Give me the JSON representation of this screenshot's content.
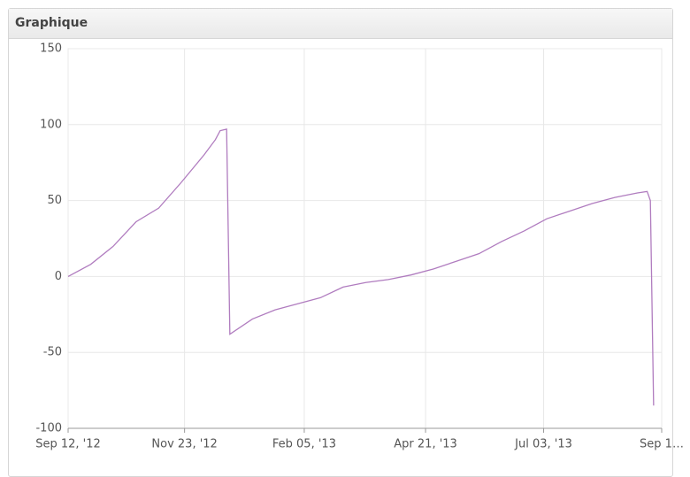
{
  "chart_data": {
    "type": "line",
    "title": "Graphique",
    "x": [
      "2012-09-12",
      "2012-09-26",
      "2012-10-10",
      "2012-10-24",
      "2012-11-07",
      "2012-11-21",
      "2012-12-05",
      "2012-12-12",
      "2012-12-15",
      "2012-12-19",
      "2012-12-21",
      "2013-01-04",
      "2013-01-18",
      "2013-02-01",
      "2013-02-15",
      "2013-03-01",
      "2013-03-15",
      "2013-03-29",
      "2013-04-12",
      "2013-04-26",
      "2013-05-10",
      "2013-05-24",
      "2013-06-07",
      "2013-06-21",
      "2013-07-05",
      "2013-07-19",
      "2013-08-02",
      "2013-08-16",
      "2013-08-30",
      "2013-09-05",
      "2013-09-07",
      "2013-09-09"
    ],
    "series": [
      {
        "color": "#b07cbf",
        "values": [
          0,
          8,
          20,
          36,
          45,
          62,
          80,
          90,
          96,
          97,
          -38,
          -28,
          -22,
          -18,
          -14,
          -7,
          -4,
          -2,
          1,
          5,
          10,
          15,
          23,
          30,
          38,
          43,
          48,
          52,
          55,
          56,
          50,
          -85
        ]
      }
    ],
    "xlim": [
      "2012-09-12",
      "2013-09-14"
    ],
    "xticks": [
      {
        "value": "2012-09-12",
        "label": "Sep 12, '12"
      },
      {
        "value": "2012-11-23",
        "label": "Nov 23, '12"
      },
      {
        "value": "2013-02-05",
        "label": "Feb 05, '13"
      },
      {
        "value": "2013-04-21",
        "label": "Apr 21, '13"
      },
      {
        "value": "2013-07-03",
        "label": "Jul 03, '13"
      },
      {
        "value": "2013-09-14",
        "label": "Sep 1…"
      }
    ],
    "ylim": [
      -100,
      150
    ],
    "yticks": [
      -100,
      -50,
      0,
      50,
      100,
      150
    ],
    "grid": true
  }
}
